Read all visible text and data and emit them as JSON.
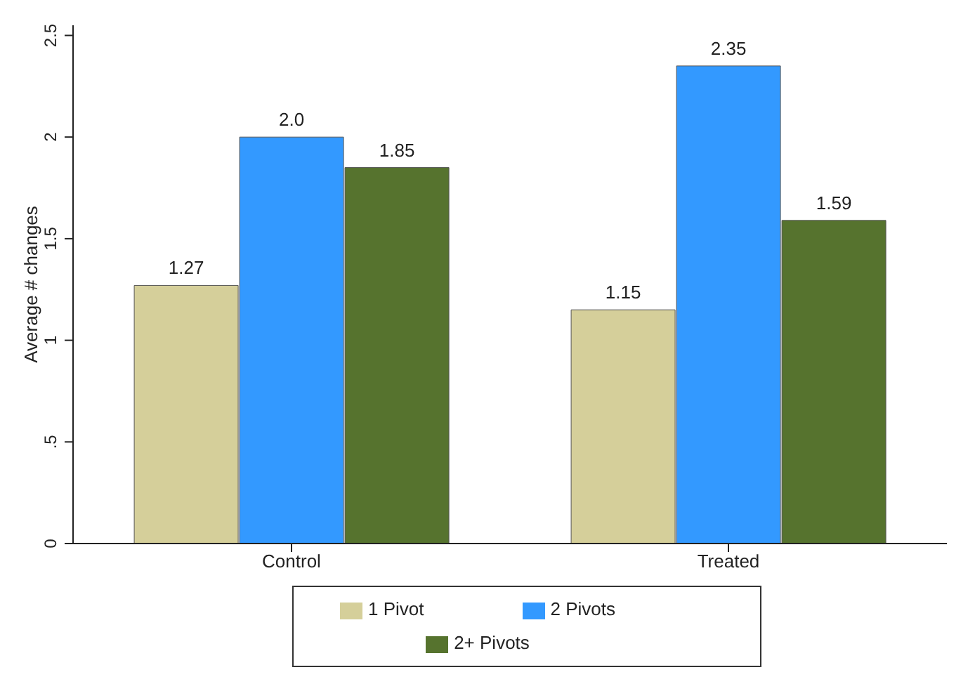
{
  "chart_data": {
    "type": "bar",
    "ylabel": "Average # changes",
    "categories": [
      "Control",
      "Treated"
    ],
    "series": [
      {
        "name": "1 Pivot",
        "color": "#d5cf9a",
        "values": [
          1.27,
          1.15
        ],
        "value_labels": [
          "1.27",
          "1.15"
        ]
      },
      {
        "name": "2 Pivots",
        "color": "#3399ff",
        "values": [
          2.0,
          2.35
        ],
        "value_labels": [
          "2.0",
          "2.35"
        ]
      },
      {
        "name": "2+ Pivots",
        "color": "#56732e",
        "values": [
          1.85,
          1.59
        ],
        "value_labels": [
          "1.85",
          "1.59"
        ]
      }
    ],
    "ylim": [
      0,
      2.55
    ],
    "yticks": [
      0,
      {
        "value": 0.5,
        "label": ".5"
      },
      1,
      1.5,
      2,
      2.5
    ],
    "grid": false,
    "legend": "bottom"
  }
}
